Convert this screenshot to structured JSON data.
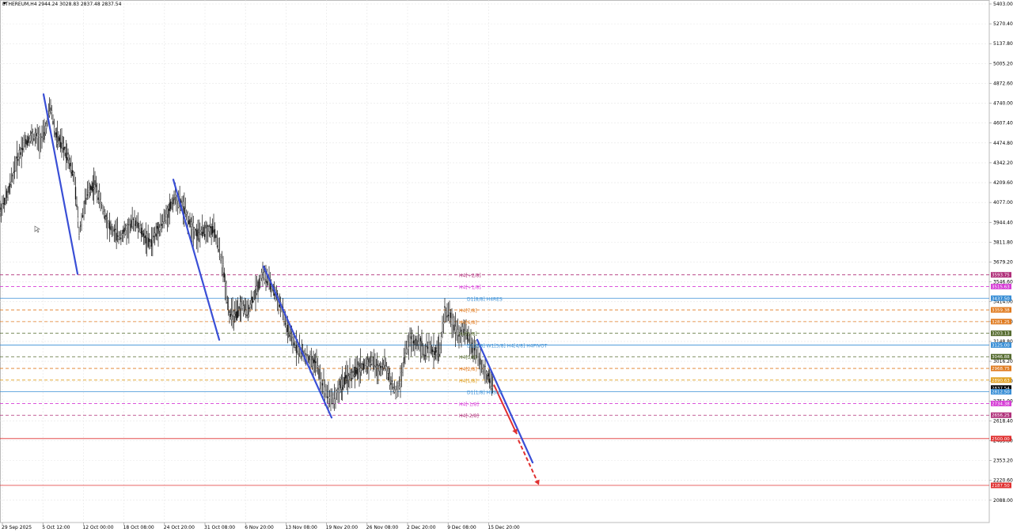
{
  "header": {
    "text": "ETHEREUM,H4  2944.24 3028.83 2837.48 2837.54"
  },
  "chart_data": {
    "type": "candlestick",
    "symbol": "ETHEREUM",
    "timeframe": "H4",
    "ohlc": {
      "open": 2944.24,
      "high": 3028.83,
      "low": 2837.48,
      "close": 2837.54
    },
    "ylim": [
      2008,
      5403
    ],
    "y_ticks": [
      "5403.00",
      "5270.40",
      "5137.80",
      "5005.20",
      "4872.60",
      "4740.00",
      "4607.40",
      "4474.80",
      "4342.20",
      "4209.60",
      "4077.00",
      "3944.40",
      "3811.80",
      "3679.20",
      "3546.60",
      "3414.00",
      "3281.40",
      "3148.80",
      "3016.20",
      "2883.60",
      "2751.00",
      "2618.40",
      "2485.80",
      "2353.20",
      "2220.60",
      "2088.00"
    ],
    "x_ticks": [
      "29 Sep 2025",
      "5 Oct 12:00",
      "12 Oct 00:00",
      "18 Oct 08:00",
      "24 Oct 20:00",
      "31 Oct 08:00",
      "6 Nov 20:00",
      "13 Nov 08:00",
      "19 Nov 20:00",
      "26 Nov 08:00",
      "2 Dec 20:00",
      "9 Dec 08:00",
      "15 Dec 20:00"
    ],
    "price_path": [
      [
        0,
        4020
      ],
      [
        10,
        4130
      ],
      [
        20,
        4340
      ],
      [
        30,
        4470
      ],
      [
        40,
        4520
      ],
      [
        50,
        4500
      ],
      [
        56,
        4530
      ],
      [
        64,
        4720
      ],
      [
        70,
        4530
      ],
      [
        78,
        4460
      ],
      [
        86,
        4390
      ],
      [
        94,
        4230
      ],
      [
        100,
        3880
      ],
      [
        106,
        4040
      ],
      [
        112,
        4160
      ],
      [
        120,
        4200
      ],
      [
        130,
        4030
      ],
      [
        140,
        3900
      ],
      [
        150,
        3850
      ],
      [
        160,
        3890
      ],
      [
        170,
        3960
      ],
      [
        180,
        3870
      ],
      [
        190,
        3800
      ],
      [
        200,
        3900
      ],
      [
        210,
        3980
      ],
      [
        220,
        4110
      ],
      [
        230,
        4060
      ],
      [
        240,
        3940
      ],
      [
        250,
        3860
      ],
      [
        260,
        3900
      ],
      [
        270,
        3890
      ],
      [
        276,
        3780
      ],
      [
        282,
        3630
      ],
      [
        290,
        3330
      ],
      [
        298,
        3320
      ],
      [
        306,
        3390
      ],
      [
        312,
        3340
      ],
      [
        320,
        3440
      ],
      [
        326,
        3520
      ],
      [
        332,
        3610
      ],
      [
        340,
        3540
      ],
      [
        348,
        3470
      ],
      [
        356,
        3370
      ],
      [
        362,
        3250
      ],
      [
        370,
        3140
      ],
      [
        376,
        3110
      ],
      [
        384,
        3060
      ],
      [
        392,
        3020
      ],
      [
        400,
        3000
      ],
      [
        406,
        2880
      ],
      [
        412,
        2820
      ],
      [
        418,
        2760
      ],
      [
        424,
        2780
      ],
      [
        430,
        2850
      ],
      [
        438,
        2900
      ],
      [
        446,
        2930
      ],
      [
        454,
        2970
      ],
      [
        462,
        2990
      ],
      [
        470,
        3020
      ],
      [
        478,
        2960
      ],
      [
        486,
        3000
      ],
      [
        494,
        2880
      ],
      [
        500,
        2800
      ],
      [
        506,
        2880
      ],
      [
        512,
        3070
      ],
      [
        518,
        3160
      ],
      [
        524,
        3130
      ],
      [
        530,
        3170
      ],
      [
        536,
        3060
      ],
      [
        542,
        3110
      ],
      [
        548,
        3080
      ],
      [
        556,
        3090
      ],
      [
        562,
        3350
      ],
      [
        568,
        3320
      ],
      [
        574,
        3260
      ],
      [
        580,
        3200
      ],
      [
        586,
        3220
      ],
      [
        592,
        3170
      ],
      [
        598,
        3100
      ],
      [
        604,
        3070
      ],
      [
        610,
        2960
      ],
      [
        616,
        2920
      ],
      [
        620,
        2880
      ],
      [
        624,
        2837.54
      ]
    ],
    "levels": [
      {
        "label": "H4[+2/8]",
        "value": 3593.75,
        "color": "#b0307a",
        "dash": true
      },
      {
        "label": "H4[+1/8]",
        "value": 3515.63,
        "color": "#d63ed6",
        "dash": true
      },
      {
        "label": "D1[8/8] H4RES",
        "value": 3437.5,
        "color": "#3a8fd6",
        "dash": false
      },
      {
        "label": "H4[7/8]",
        "value": 3359.38,
        "color": "#e07b20",
        "dash": true
      },
      {
        "label": "H4[6/8]",
        "value": 3281.25,
        "color": "#e07b20",
        "dash": true
      },
      {
        "label": "H4[5/8]",
        "value": 3203.13,
        "color": "#556b2f",
        "dash": true
      },
      {
        "label": "D1[6/8] W1[5/8] H4[4/8] H4PIVOT",
        "value": 3125.0,
        "color": "#3a8fd6",
        "dash": false
      },
      {
        "label": "H4[3/8]",
        "value": 3046.88,
        "color": "#556b2f",
        "dash": true
      },
      {
        "label": "H4[2/8]",
        "value": 2968.75,
        "color": "#e07b20",
        "dash": true
      },
      {
        "label": "H4[1/8]",
        "value": 2890.63,
        "color": "#e0a020",
        "dash": true
      },
      {
        "label": "D1[1/8] H4SUP",
        "value": 2812.5,
        "color": "#3a8fd6",
        "dash": false
      },
      {
        "label": "H4[-1/8]",
        "value": 2734.38,
        "color": "#d63ed6",
        "dash": true
      },
      {
        "label": "H4[-2/8]",
        "value": 2656.25,
        "color": "#b0307a",
        "dash": true
      }
    ],
    "price_badges": [
      {
        "text": "3593.75",
        "value": 3593.75,
        "color": "#b0307a"
      },
      {
        "text": "3515.63",
        "value": 3515.63,
        "color": "#d63ed6"
      },
      {
        "text": "3437.50",
        "value": 3437.5,
        "color": "#3a8fd6"
      },
      {
        "text": "3359.38",
        "value": 3359.38,
        "color": "#e07b20"
      },
      {
        "text": "3281.25",
        "value": 3281.25,
        "color": "#e07b20"
      },
      {
        "text": "3203.13",
        "value": 3203.13,
        "color": "#556b2f"
      },
      {
        "text": "3125.00",
        "value": 3125.0,
        "color": "#3a8fd6"
      },
      {
        "text": "3046.88",
        "value": 3046.88,
        "color": "#556b2f"
      },
      {
        "text": "2968.75",
        "value": 2968.75,
        "color": "#e07b20"
      },
      {
        "text": "2890.63",
        "value": 2890.63,
        "color": "#e0a020"
      },
      {
        "text": "2837.54",
        "value": 2837.54,
        "color": "#000000"
      },
      {
        "text": "2812.50",
        "value": 2812.5,
        "color": "#3a8fd6"
      },
      {
        "text": "2734.38",
        "value": 2734.38,
        "color": "#d63ed6"
      },
      {
        "text": "2656.25",
        "value": 2656.25,
        "color": "#b0307a"
      },
      {
        "text": "2500.00",
        "value": 2500.0,
        "color": "#e03030"
      },
      {
        "text": "2187.50",
        "value": 2187.5,
        "color": "#e03030"
      }
    ],
    "horizontal_lines": [
      {
        "value": 2500.0,
        "color": "#e03030"
      },
      {
        "value": 2187.5,
        "color": "#e03030"
      }
    ],
    "trendlines": [
      {
        "x1": 55,
        "y1_value": 4800,
        "x2": 98,
        "y2_value": 3600,
        "color": "#3a4fd6"
      },
      {
        "x1": 219,
        "y1_value": 4230,
        "x2": 277,
        "y2_value": 3160,
        "color": "#3a4fd6"
      },
      {
        "x1": 333,
        "y1_value": 3650,
        "x2": 419,
        "y2_value": 2640,
        "color": "#3a4fd6"
      },
      {
        "x1": 603,
        "y1_value": 3160,
        "x2": 673,
        "y2_value": 2340,
        "color": "#3a4fd6"
      }
    ],
    "projection": [
      {
        "x1": 624,
        "y1_value": 2860,
        "x2": 653,
        "y2_value": 2530,
        "color": "#e03030",
        "dash": false
      },
      {
        "x1": 655,
        "y1_value": 2490,
        "x2": 681,
        "y2_value": 2190,
        "color": "#e03030",
        "dash": true
      }
    ]
  }
}
